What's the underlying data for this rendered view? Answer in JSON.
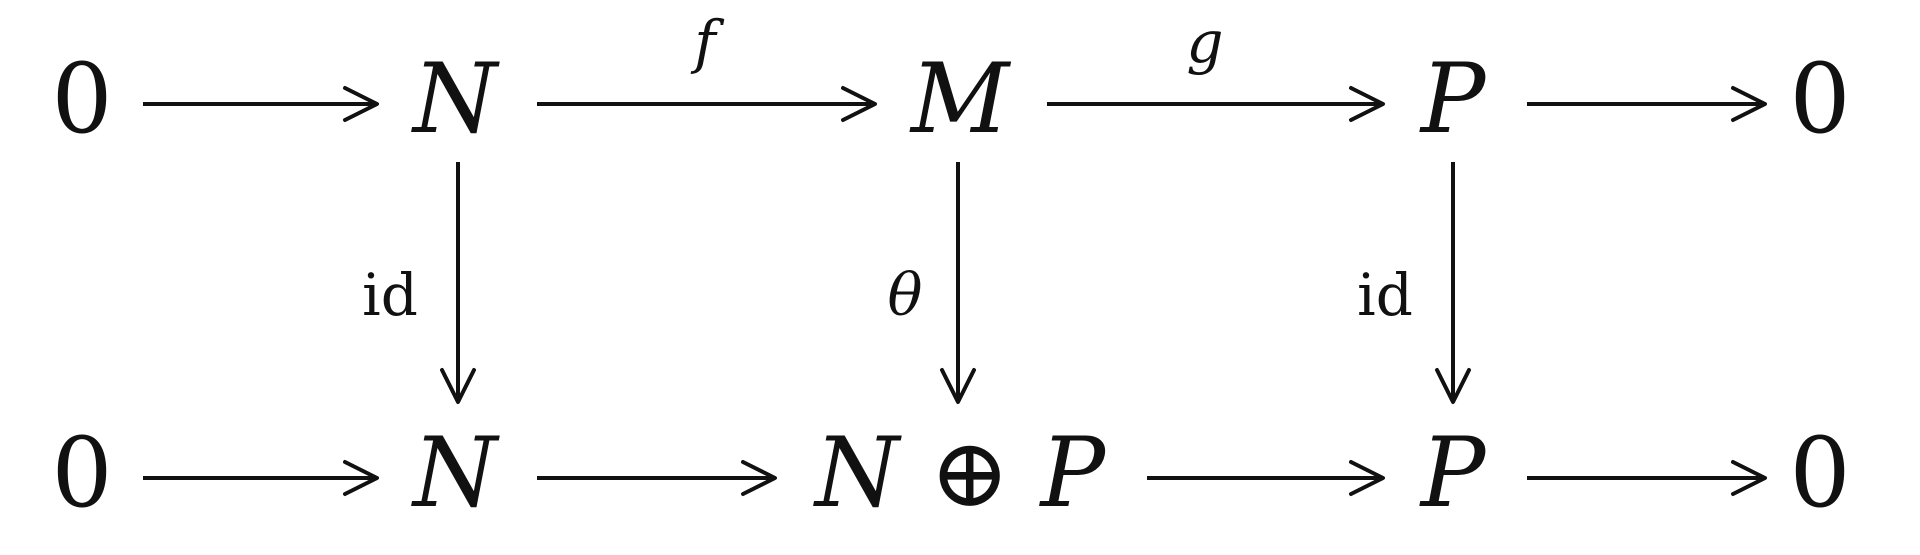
{
  "diagram": {
    "top_row": {
      "zero_left": "0",
      "n": "N",
      "m": "M",
      "p": "P",
      "zero_right": "0"
    },
    "bottom_row": {
      "zero_left": "0",
      "n": "N",
      "n_oplus_p": "N ⊕ P",
      "p": "P",
      "zero_right": "0"
    },
    "labels": {
      "f": "f",
      "g": "g",
      "id_left": "id",
      "theta": "θ",
      "id_right": "id"
    }
  }
}
